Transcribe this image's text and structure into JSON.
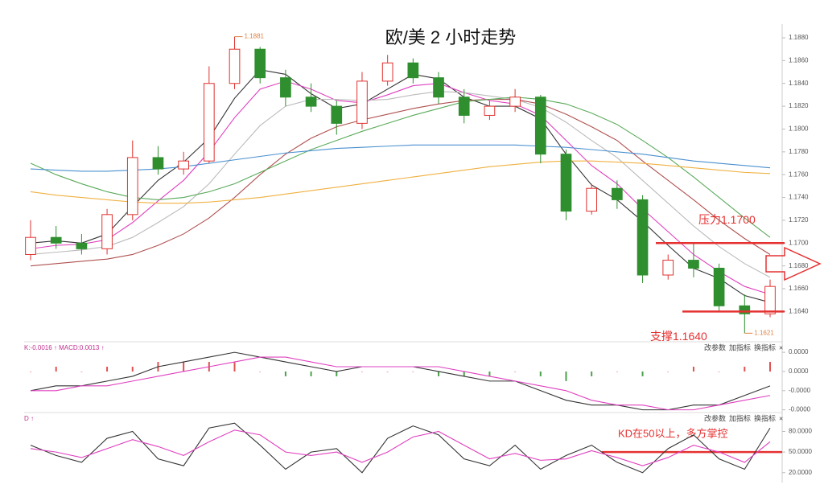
{
  "chart_data": [
    {
      "type": "candlestick",
      "title": "欧/美 2 小时走势",
      "up_color": "#e0322f",
      "down_color": "#2f8f2f",
      "open": [
        1.169,
        1.1705,
        1.17,
        1.1695,
        1.1725,
        1.1775,
        1.1765,
        1.1772,
        1.184,
        1.187,
        1.1845,
        1.1828,
        1.182,
        1.1805,
        1.1842,
        1.1858,
        1.1845,
        1.1828,
        1.1812,
        1.182,
        1.1828,
        1.1778,
        1.1728,
        1.1748,
        1.1738,
        1.1672,
        1.1685,
        1.1678,
        1.1645,
        1.1638
      ],
      "high": [
        1.172,
        1.1715,
        1.1708,
        1.173,
        1.179,
        1.1785,
        1.178,
        1.1855,
        1.1881,
        1.1872,
        1.1852,
        1.184,
        1.1825,
        1.185,
        1.1865,
        1.1862,
        1.185,
        1.1835,
        1.1825,
        1.1835,
        1.183,
        1.1782,
        1.1752,
        1.1755,
        1.1742,
        1.169,
        1.17,
        1.1682,
        1.1655,
        1.1668
      ],
      "low": [
        1.1685,
        1.1695,
        1.169,
        1.169,
        1.172,
        1.176,
        1.176,
        1.177,
        1.1835,
        1.184,
        1.182,
        1.1815,
        1.1795,
        1.18,
        1.1838,
        1.184,
        1.1822,
        1.1805,
        1.1808,
        1.1815,
        1.177,
        1.172,
        1.1725,
        1.173,
        1.1665,
        1.1668,
        1.167,
        1.164,
        1.1621,
        1.1635
      ],
      "close": [
        1.1705,
        1.17,
        1.1695,
        1.1725,
        1.1775,
        1.1765,
        1.1772,
        1.184,
        1.187,
        1.1845,
        1.1828,
        1.182,
        1.1805,
        1.1842,
        1.1858,
        1.1845,
        1.1828,
        1.1812,
        1.182,
        1.1828,
        1.1778,
        1.1728,
        1.1748,
        1.1738,
        1.1672,
        1.1685,
        1.1678,
        1.1645,
        1.1638,
        1.1662
      ],
      "series": [
        {
          "color": "#333333",
          "values": [
            1.17,
            1.1702,
            1.17,
            1.1708,
            1.1732,
            1.1755,
            1.1771,
            1.1792,
            1.1827,
            1.1852,
            1.1848,
            1.1831,
            1.1818,
            1.1822,
            1.1835,
            1.1848,
            1.1844,
            1.1828,
            1.182,
            1.182,
            1.1809,
            1.1778,
            1.1751,
            1.1738,
            1.1719,
            1.1698,
            1.1678,
            1.1669,
            1.1654,
            1.1648
          ]
        },
        {
          "color": "#e040c0",
          "values": [
            1.1695,
            1.1698,
            1.1699,
            1.1703,
            1.1718,
            1.1737,
            1.1755,
            1.178,
            1.181,
            1.1835,
            1.1842,
            1.1835,
            1.1825,
            1.1823,
            1.183,
            1.1838,
            1.184,
            1.1832,
            1.1825,
            1.1822,
            1.1812,
            1.179,
            1.1768,
            1.1752,
            1.173,
            1.171,
            1.169,
            1.1675,
            1.1662,
            1.1655
          ]
        },
        {
          "color": "#bbbbbb",
          "values": [
            1.169,
            1.1692,
            1.1694,
            1.1697,
            1.1705,
            1.1718,
            1.1732,
            1.1752,
            1.1778,
            1.1803,
            1.182,
            1.1826,
            1.1826,
            1.1825,
            1.1826,
            1.183,
            1.1833,
            1.1832,
            1.1829,
            1.1826,
            1.1819,
            1.1806,
            1.179,
            1.1775,
            1.1755,
            1.1735,
            1.1715,
            1.1697,
            1.1682,
            1.167
          ]
        },
        {
          "color": "#b05050",
          "values": [
            1.168,
            1.1682,
            1.1684,
            1.1686,
            1.169,
            1.1698,
            1.1708,
            1.1722,
            1.174,
            1.176,
            1.1778,
            1.1792,
            1.1802,
            1.1808,
            1.1813,
            1.1818,
            1.1822,
            1.1825,
            1.1826,
            1.1826,
            1.1822,
            1.1813,
            1.1802,
            1.179,
            1.1772,
            1.1755,
            1.1738,
            1.172,
            1.1704,
            1.169
          ]
        },
        {
          "color": "#5aaa5a",
          "values": [
            1.177,
            1.176,
            1.1752,
            1.1745,
            1.174,
            1.1738,
            1.174,
            1.1745,
            1.1752,
            1.1762,
            1.1772,
            1.1782,
            1.179,
            1.1798,
            1.1805,
            1.1812,
            1.1818,
            1.1824,
            1.1826,
            1.1828,
            1.1826,
            1.1822,
            1.1814,
            1.1804,
            1.179,
            1.1775,
            1.1758,
            1.174,
            1.1722,
            1.1705
          ]
        },
        {
          "color": "#4a90d0",
          "values": [
            1.1765,
            1.1764,
            1.1763,
            1.1763,
            1.1764,
            1.1765,
            1.1767,
            1.177,
            1.1773,
            1.1776,
            1.1779,
            1.1781,
            1.1783,
            1.1784,
            1.1785,
            1.1786,
            1.1786,
            1.1786,
            1.1786,
            1.1786,
            1.1785,
            1.1784,
            1.1782,
            1.178,
            1.1778,
            1.1775,
            1.1772,
            1.177,
            1.1768,
            1.1766
          ]
        },
        {
          "color": "#f0b040",
          "values": [
            1.1745,
            1.1742,
            1.174,
            1.1738,
            1.1736,
            1.1735,
            1.1735,
            1.1736,
            1.1738,
            1.174,
            1.1743,
            1.1746,
            1.1749,
            1.1752,
            1.1755,
            1.1758,
            1.1761,
            1.1764,
            1.1767,
            1.1769,
            1.1771,
            1.1772,
            1.1772,
            1.1771,
            1.177,
            1.1768,
            1.1766,
            1.1764,
            1.1762,
            1.1761
          ]
        }
      ],
      "ylim": [
        1.1617,
        1.1892
      ],
      "yticks": [
        {
          "value": 1.164,
          "label": "1.1640"
        },
        {
          "value": 1.166,
          "label": "1.1660"
        },
        {
          "value": 1.168,
          "label": "1.1680"
        },
        {
          "value": 1.17,
          "label": "1.1700"
        },
        {
          "value": 1.172,
          "label": "1.1720"
        },
        {
          "value": 1.174,
          "label": "1.1740"
        },
        {
          "value": 1.176,
          "label": "1.1760"
        },
        {
          "value": 1.178,
          "label": "1.1780"
        },
        {
          "value": 1.18,
          "label": "1.1800"
        },
        {
          "value": 1.182,
          "label": "1.1820"
        },
        {
          "value": 1.184,
          "label": "1.1840"
        },
        {
          "value": 1.186,
          "label": "1.1860"
        },
        {
          "value": 1.188,
          "label": "1.1880"
        }
      ],
      "levels": [
        {
          "text": "压力1.1700",
          "value": 1.17,
          "color": "#e53030"
        },
        {
          "text": "支撑1.1640",
          "value": 1.164,
          "color": "#e53030"
        }
      ],
      "extremes": [
        {
          "text": "1.1881",
          "value": 1.1881
        },
        {
          "text": "1.1621",
          "value": 1.1621
        }
      ]
    },
    {
      "type": "macd",
      "header": "K:-0.0016 ↑ MACD:0.0013 ↑",
      "buttons": [
        "改参数",
        "加指标",
        "换指标",
        "×"
      ],
      "series": [
        {
          "color": "#333333",
          "values": [
            -4e-05,
            -3e-05,
            -3e-05,
            -2e-05,
            -1e-05,
            1e-05,
            2e-05,
            3e-05,
            4e-05,
            3e-05,
            2e-05,
            1e-05,
            0,
            1e-05,
            1e-05,
            1e-05,
            0,
            -1e-05,
            -2e-05,
            -2e-05,
            -4e-05,
            -6e-05,
            -7e-05,
            -7e-05,
            -8e-05,
            -8e-05,
            -7e-05,
            -7e-05,
            -5e-05,
            -3e-05
          ]
        },
        {
          "color": "#e040c0",
          "values": [
            -4e-05,
            -4e-05,
            -3e-05,
            -3e-05,
            -2e-05,
            -1e-05,
            0,
            1e-05,
            2e-05,
            3e-05,
            3e-05,
            2e-05,
            1e-05,
            1e-05,
            1e-05,
            1e-05,
            1e-05,
            0,
            -1e-05,
            -2e-05,
            -3e-05,
            -4e-05,
            -6e-05,
            -7e-05,
            -7e-05,
            -8e-05,
            -8e-05,
            -7e-05,
            -6e-05,
            -5e-05
          ]
        }
      ],
      "histogram": [
        0,
        1e-05,
        0,
        1e-05,
        1e-05,
        2e-05,
        2e-05,
        2e-05,
        2e-05,
        0,
        -1e-05,
        -1e-05,
        -1e-05,
        0,
        0,
        0,
        -1e-05,
        -1e-05,
        -1e-05,
        0,
        -1e-05,
        -2e-05,
        -1e-05,
        0,
        -1e-05,
        0,
        1e-05,
        0,
        1e-05,
        2e-05
      ],
      "up_color": "#e05050",
      "down_color": "#4aa04a",
      "ylim": [
        -8.4e-05,
        5.7e-05
      ],
      "yticks": [
        {
          "value": 4e-05,
          "label": "0.0000"
        },
        {
          "value": 0,
          "label": "0.0000"
        },
        {
          "value": -4e-05,
          "label": "-0.0000"
        },
        {
          "value": -8e-05,
          "label": "-0.0000"
        }
      ]
    },
    {
      "type": "line",
      "header": "D ↑",
      "buttons": [
        "改参数",
        "加指标",
        "换指标",
        "×"
      ],
      "series": [
        {
          "color": "#333333",
          "values": [
            60,
            45,
            35,
            70,
            80,
            40,
            30,
            85,
            92,
            60,
            25,
            50,
            55,
            20,
            70,
            88,
            75,
            40,
            30,
            60,
            25,
            45,
            60,
            35,
            20,
            55,
            75,
            40,
            25,
            85
          ]
        },
        {
          "color": "#e040c0",
          "values": [
            55,
            50,
            42,
            55,
            68,
            58,
            45,
            65,
            82,
            75,
            50,
            45,
            50,
            35,
            50,
            72,
            80,
            60,
            40,
            48,
            38,
            40,
            52,
            42,
            30,
            42,
            60,
            50,
            35,
            65
          ]
        }
      ],
      "ylim": [
        8,
        104
      ],
      "yticks": [
        {
          "value": 20,
          "label": "20.0000"
        },
        {
          "value": 50,
          "label": "50.0000"
        },
        {
          "value": 80,
          "label": "80.0000"
        }
      ],
      "levels": [
        {
          "text": "KD在50以上，多方掌控",
          "value": 50,
          "color": "#e53030"
        }
      ]
    }
  ]
}
